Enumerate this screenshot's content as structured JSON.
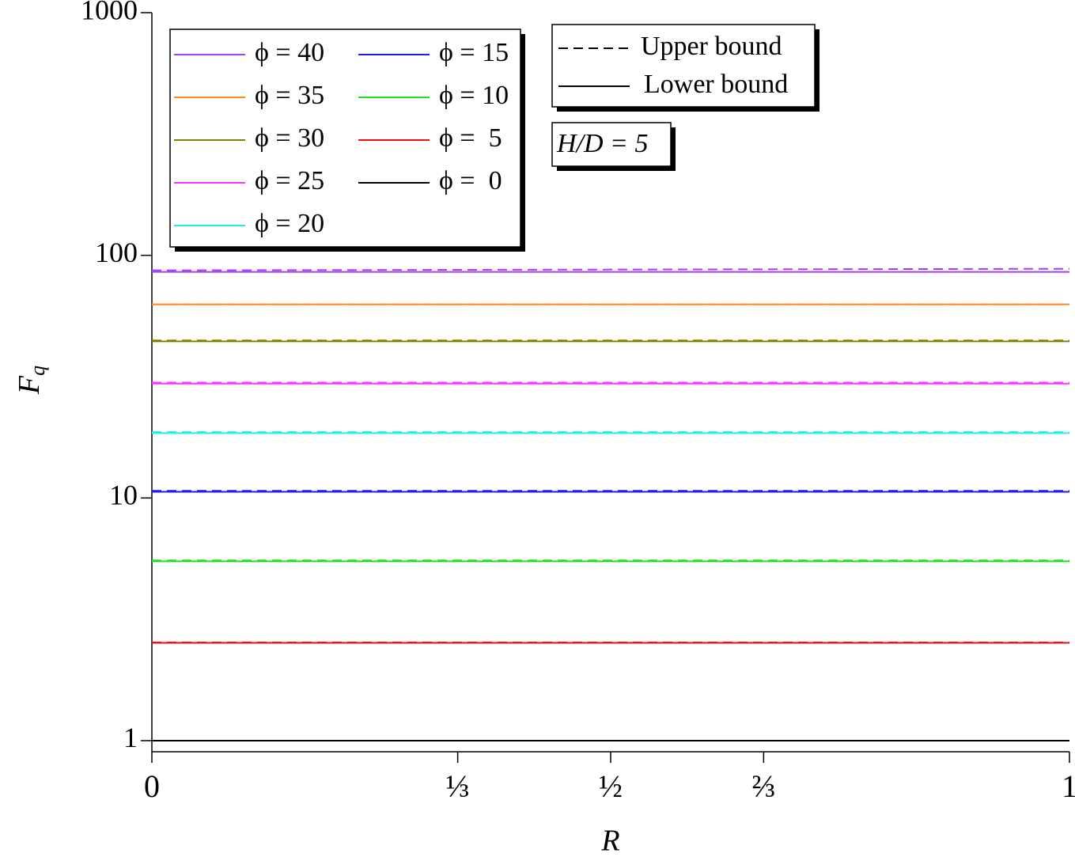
{
  "chart_data": {
    "type": "line",
    "x_label": "R",
    "y_label": "F",
    "y_label_sub": "q",
    "annotation": "H/D = 5",
    "bound_legend": {
      "upper": "Upper bound",
      "lower": "Lower bound"
    },
    "x": [
      0,
      1
    ],
    "xlim": [
      0,
      1
    ],
    "xticks": [
      0,
      {
        "value": 0.3333,
        "label": "⅓"
      },
      {
        "value": 0.5,
        "label": "½"
      },
      {
        "value": 0.6667,
        "label": "⅔"
      },
      1
    ],
    "ylim": [
      0.9,
      1000
    ],
    "log_y": true,
    "yticks": [
      1,
      10,
      100,
      1000
    ],
    "series": [
      {
        "name": "ϕ = 40",
        "color": "#a040f0",
        "lower": [
          85.4,
          85.4
        ],
        "upper": [
          86.7,
          88.0
        ]
      },
      {
        "name": "ϕ = 35",
        "color": "#ff8c1a",
        "lower": [
          62.8,
          62.8
        ],
        "upper": [
          62.8,
          62.8
        ]
      },
      {
        "name": "ϕ = 30",
        "color": "#808000",
        "lower": [
          44.2,
          44.2
        ],
        "upper": [
          44.6,
          44.6
        ]
      },
      {
        "name": "ϕ = 25",
        "color": "#ff33ff",
        "lower": [
          29.6,
          29.6
        ],
        "upper": [
          29.9,
          29.9
        ]
      },
      {
        "name": "ϕ = 20",
        "color": "#22eeee",
        "lower": [
          18.5,
          18.5
        ],
        "upper": [
          18.7,
          18.7
        ]
      },
      {
        "name": "ϕ = 15",
        "color": "#1a1aff",
        "lower": [
          10.6,
          10.6
        ],
        "upper": [
          10.7,
          10.7
        ]
      },
      {
        "name": "ϕ = 10",
        "color": "#22dd22",
        "lower": [
          5.48,
          5.48
        ],
        "upper": [
          5.53,
          5.53
        ]
      },
      {
        "name": "ϕ =  5",
        "color": "#ee1111",
        "lower": [
          2.53,
          2.53
        ],
        "upper": [
          2.54,
          2.54
        ]
      },
      {
        "name": "ϕ =  0",
        "color": "#000000",
        "lower": [
          1,
          1
        ],
        "upper": [
          1,
          1
        ]
      }
    ]
  }
}
